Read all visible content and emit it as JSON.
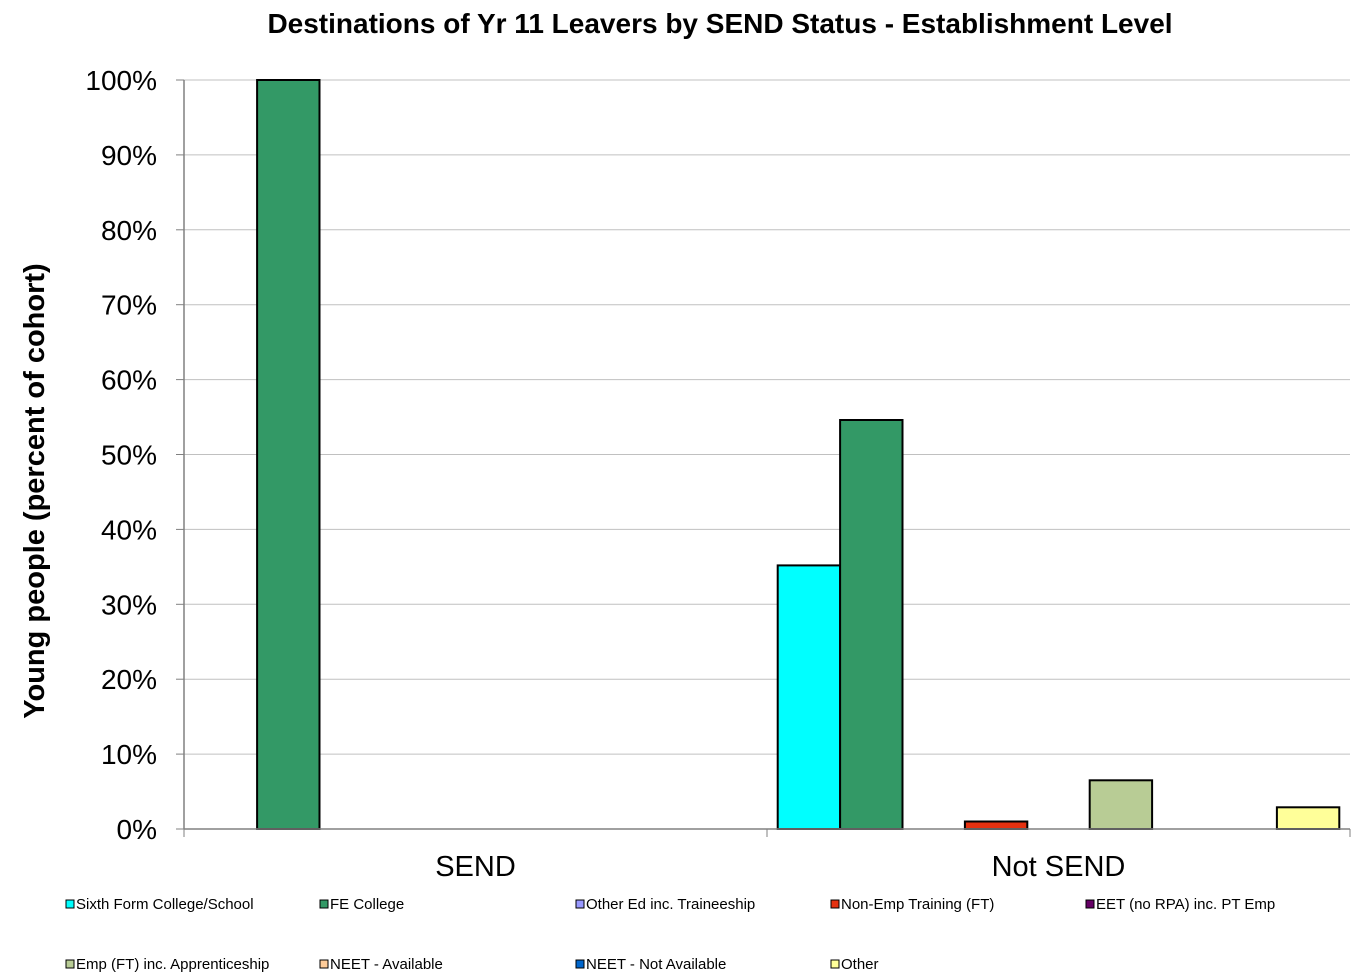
{
  "chart_data": {
    "type": "bar",
    "title": "Destinations of Yr 11 Leavers by SEND Status - Establishment Level",
    "xlabel": "",
    "ylabel": "Young people (percent of cohort)",
    "categories": [
      "SEND",
      "Not SEND"
    ],
    "ylim": [
      0,
      100
    ],
    "y_ticks": [
      "0%",
      "10%",
      "20%",
      "30%",
      "40%",
      "50%",
      "60%",
      "70%",
      "80%",
      "90%",
      "100%"
    ],
    "grid": true,
    "legend_position": "bottom",
    "series": [
      {
        "name": "Sixth Form College/School",
        "color": "#00ffff",
        "values": [
          0,
          35.2
        ]
      },
      {
        "name": "FE College",
        "color": "#339966",
        "values": [
          100,
          54.6
        ]
      },
      {
        "name": "Other Ed inc. Traineeship",
        "color": "#9999ff",
        "values": [
          0,
          0
        ]
      },
      {
        "name": "Non-Emp Training (FT)",
        "color": "#e53110",
        "values": [
          0,
          1.0
        ]
      },
      {
        "name": "EET (no RPA) inc. PT Emp",
        "color": "#660066",
        "values": [
          0,
          0
        ]
      },
      {
        "name": "Emp (FT) inc. Apprenticeship",
        "color": "#b8cc95",
        "values": [
          0,
          6.5
        ]
      },
      {
        "name": "NEET - Available",
        "color": "#ffcc99",
        "values": [
          0,
          0
        ]
      },
      {
        "name": "NEET - Not Available",
        "color": "#0066cc",
        "values": [
          0,
          0
        ]
      },
      {
        "name": "Other",
        "color": "#ffff99",
        "values": [
          0,
          2.9
        ]
      }
    ]
  }
}
